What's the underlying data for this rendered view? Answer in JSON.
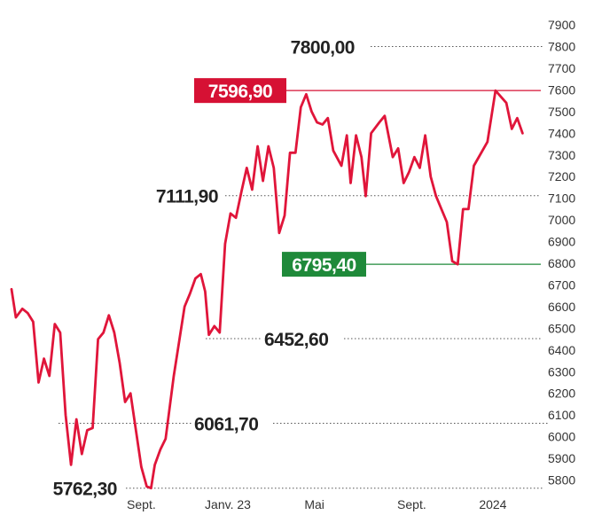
{
  "chart_data": {
    "type": "line",
    "title": "",
    "xlabel": "",
    "ylabel": "",
    "ylim": [
      5750,
      7900
    ],
    "xlim": [
      0,
      91
    ],
    "yticks": [
      5800,
      5900,
      6000,
      6100,
      6200,
      6300,
      6400,
      6500,
      6600,
      6700,
      6800,
      6900,
      7000,
      7100,
      7200,
      7300,
      7400,
      7500,
      7600,
      7700,
      7800,
      7900
    ],
    "xticks": [
      {
        "label": "Sept.",
        "x": 24
      },
      {
        "label": "Janv. 23",
        "x": 40
      },
      {
        "label": "Mai",
        "x": 56
      },
      {
        "label": "Sept.",
        "x": 74
      },
      {
        "label": "2024",
        "x": 89
      }
    ],
    "grid": false,
    "colors": {
      "line": "#e0153a",
      "max_box": "#d61134",
      "min_box": "#1f8a3a",
      "text": "#222222"
    },
    "series": [
      {
        "values": [
          [
            0,
            6680
          ],
          [
            0.8,
            6550
          ],
          [
            2,
            6590
          ],
          [
            3,
            6570
          ],
          [
            4,
            6530
          ],
          [
            5,
            6250
          ],
          [
            6,
            6360
          ],
          [
            7,
            6280
          ],
          [
            8,
            6520
          ],
          [
            9,
            6480
          ],
          [
            10,
            6100
          ],
          [
            11,
            5870
          ],
          [
            12,
            6080
          ],
          [
            13,
            5920
          ],
          [
            14,
            6030
          ],
          [
            15,
            6040
          ],
          [
            16,
            6450
          ],
          [
            17,
            6480
          ],
          [
            18,
            6560
          ],
          [
            19,
            6480
          ],
          [
            20,
            6340
          ],
          [
            21,
            6160
          ],
          [
            22,
            6200
          ],
          [
            23,
            6030
          ],
          [
            24,
            5860
          ],
          [
            25,
            5770
          ],
          [
            25.8,
            5762.3
          ],
          [
            26.5,
            5870
          ],
          [
            27.5,
            5940
          ],
          [
            28.5,
            5990
          ],
          [
            30,
            6280
          ],
          [
            32,
            6600
          ],
          [
            33,
            6660
          ],
          [
            34,
            6730
          ],
          [
            35,
            6750
          ],
          [
            35.8,
            6670
          ],
          [
            36.5,
            6470
          ],
          [
            37.5,
            6510
          ],
          [
            38.5,
            6480
          ],
          [
            39.5,
            6890
          ],
          [
            40.5,
            7030
          ],
          [
            41.5,
            7010
          ],
          [
            42.5,
            7130
          ],
          [
            43.5,
            7240
          ],
          [
            44.5,
            7140
          ],
          [
            45.5,
            7340
          ],
          [
            46.5,
            7180
          ],
          [
            47.5,
            7340
          ],
          [
            48.5,
            7240
          ],
          [
            49.5,
            6940
          ],
          [
            50.5,
            7020
          ],
          [
            51.5,
            7310
          ],
          [
            52.5,
            7310
          ],
          [
            53.5,
            7520
          ],
          [
            54.5,
            7580
          ],
          [
            55.5,
            7500
          ],
          [
            56.5,
            7450
          ],
          [
            57.5,
            7440
          ],
          [
            58.5,
            7470
          ],
          [
            59.5,
            7320
          ],
          [
            61,
            7250
          ],
          [
            62,
            7390
          ],
          [
            62.7,
            7170
          ],
          [
            63.7,
            7390
          ],
          [
            64.7,
            7290
          ],
          [
            65.5,
            7110
          ],
          [
            66.5,
            7400
          ],
          [
            68,
            7450
          ],
          [
            69,
            7480
          ],
          [
            70.5,
            7290
          ],
          [
            71.5,
            7330
          ],
          [
            72.5,
            7170
          ],
          [
            73.5,
            7220
          ],
          [
            74.5,
            7290
          ],
          [
            75.5,
            7240
          ],
          [
            76.5,
            7390
          ],
          [
            77.5,
            7200
          ],
          [
            78.5,
            7110
          ],
          [
            79.5,
            7050
          ],
          [
            80.5,
            6990
          ],
          [
            81.5,
            6810
          ],
          [
            82.5,
            6795.4
          ],
          [
            83.5,
            7050
          ],
          [
            84.5,
            7050
          ],
          [
            85.5,
            7250
          ],
          [
            88,
            7360
          ],
          [
            89.5,
            7596.9
          ],
          [
            91.5,
            7540
          ],
          [
            92.5,
            7420
          ],
          [
            93.5,
            7470
          ],
          [
            94.5,
            7400
          ]
        ]
      }
    ],
    "annotations": [
      {
        "label": "7800,00",
        "value": 7800,
        "style": "dotted"
      },
      {
        "label": "7596,90",
        "value": 7596.9,
        "style": "red-box"
      },
      {
        "label": "7111,90",
        "value": 7111.9,
        "style": "dotted"
      },
      {
        "label": "6795,40",
        "value": 6795.4,
        "style": "green-box"
      },
      {
        "label": "6452,60",
        "value": 6452.6,
        "style": "dotted"
      },
      {
        "label": "6061,70",
        "value": 6061.7,
        "style": "dotted"
      },
      {
        "label": "5762,30",
        "value": 5762.3,
        "style": "dotted"
      }
    ]
  }
}
